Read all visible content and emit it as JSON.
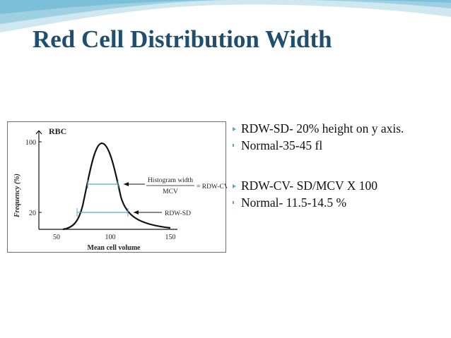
{
  "title": "Red Cell Distribution Width",
  "colors": {
    "title": "#1f4e6e",
    "banner_light": "#cfe7ef",
    "banner_mid": "#9fd0e2",
    "banner_dark": "#7cbfd8",
    "bullet_arrow": "#5aa6c8",
    "histogram_line": "#111111",
    "width_lines": "#5aa6c8"
  },
  "figure": {
    "rbc_label": "RBC",
    "ylabel": "Frequency (%)",
    "xlabel": "Mean cell volume",
    "y_ticks": [
      "100",
      "20"
    ],
    "x_ticks": [
      "50",
      "100",
      "150"
    ],
    "histogram_width_label": "Histogram width",
    "mcv_label": "MCV",
    "rdw_cv_label": "= RDW-CV",
    "rdw_sd_label": "RDW-SD"
  },
  "bullets": [
    {
      "text": "RDW-SD- 20% height on y axis.",
      "marker": "arrow"
    },
    {
      "text": "Normal-35-45 fl",
      "marker": "dot"
    },
    {
      "text": "RDW-CV-  SD/MCV X 100",
      "marker": "arrow"
    },
    {
      "text": "Normal- 11.5-14.5 %",
      "marker": "dot"
    }
  ]
}
